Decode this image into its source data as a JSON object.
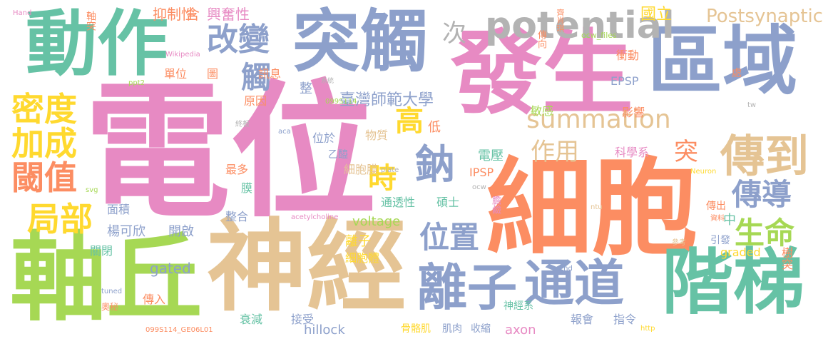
{
  "palette": {
    "green": "#66c2a5",
    "orange": "#fc8d62",
    "blue": "#8da0cb",
    "pink": "#e78ac3",
    "lime": "#a6d854",
    "yellow": "#ffd92f",
    "tan": "#e5c494",
    "gray": "#b3b3b3"
  },
  "words": [
    {
      "text": "電位",
      "color": "#e78ac3"
    },
    {
      "text": "細胞",
      "color": "#fc8d62"
    },
    {
      "text": "發生",
      "color": "#e78ac3"
    },
    {
      "text": "神經",
      "color": "#e5c494"
    },
    {
      "text": "軸丘",
      "color": "#a6d854"
    },
    {
      "text": "區域",
      "color": "#8da0cb"
    },
    {
      "text": "突觸",
      "color": "#8da0cb"
    },
    {
      "text": "動作",
      "color": "#66c2a5"
    },
    {
      "text": "階梯",
      "color": "#66c2a5"
    },
    {
      "text": "通道",
      "color": "#8da0cb"
    },
    {
      "text": "離子",
      "color": "#8da0cb"
    },
    {
      "text": "傳到",
      "color": "#e5c494"
    },
    {
      "text": "potential",
      "color": "#b3b3b3"
    },
    {
      "text": "改變",
      "color": "#8da0cb"
    },
    {
      "text": "密度",
      "color": "#ffd92f"
    },
    {
      "text": "加成",
      "color": "#ffd92f"
    },
    {
      "text": "閾值",
      "color": "#fc8d62"
    },
    {
      "text": "局部",
      "color": "#ffd92f"
    },
    {
      "text": "鈉",
      "color": "#8da0cb"
    },
    {
      "text": "時",
      "color": "#ffd92f"
    },
    {
      "text": "高",
      "color": "#ffd92f"
    },
    {
      "text": "位置",
      "color": "#8da0cb"
    },
    {
      "text": "生命",
      "color": "#a6d854"
    },
    {
      "text": "傳導",
      "color": "#8da0cb"
    },
    {
      "text": "summation",
      "color": "#e5c494"
    },
    {
      "text": "作用",
      "color": "#e5c494"
    },
    {
      "text": "Postsynaptic",
      "color": "#e5c494"
    },
    {
      "text": "突",
      "color": "#fc8d62"
    },
    {
      "text": "觸",
      "color": "#8da0cb"
    },
    {
      "text": "次",
      "color": "#b3b3b3"
    },
    {
      "text": "臺灣師範大學",
      "color": "#8da0cb"
    },
    {
      "text": "國立",
      "color": "#ffd92f"
    },
    {
      "text": "興奮性",
      "color": "#e78ac3"
    },
    {
      "text": "抑制性",
      "color": "#fc8d62"
    },
    {
      "text": "含",
      "color": "#fc8d62"
    },
    {
      "text": "軸突",
      "color": "#fc8d62"
    },
    {
      "text": "Hand",
      "color": "#e78ac3"
    },
    {
      "text": "Wikipedia",
      "color": "#e78ac3"
    },
    {
      "text": "ppt2",
      "color": "#a6d854"
    },
    {
      "text": "單位",
      "color": "#fc8d62"
    },
    {
      "text": "圖",
      "color": "#fc8d62"
    },
    {
      "text": "訊息",
      "color": "#fc8d62"
    },
    {
      "text": "系統",
      "color": "#b3b3b3"
    },
    {
      "text": "整",
      "color": "#8da0cb"
    },
    {
      "text": "原因",
      "color": "#fc8d62"
    },
    {
      "text": "099S114",
      "color": "#a6d854"
    },
    {
      "text": "EPSP",
      "color": "#8da0cb"
    },
    {
      "text": "傳向",
      "color": "#fc8d62"
    },
    {
      "text": "衝動",
      "color": "#fc8d62"
    },
    {
      "text": "處",
      "color": "#fc8d62"
    },
    {
      "text": "ocw_files",
      "color": "#a6d854"
    },
    {
      "text": "齊肖琪",
      "color": "#fc8d62"
    },
    {
      "text": "tw",
      "color": "#b3b3b3"
    },
    {
      "text": "敏感",
      "color": "#a6d854"
    },
    {
      "text": "影響",
      "color": "#fc8d62"
    },
    {
      "text": "終板",
      "color": "#b3b3b3"
    },
    {
      "text": "aca",
      "color": "#8da0cb"
    },
    {
      "text": "位於",
      "color": "#8da0cb"
    },
    {
      "text": "物質",
      "color": "#e5c494"
    },
    {
      "text": "低",
      "color": "#fc8d62"
    },
    {
      "text": "乙醯",
      "color": "#8da0cb"
    },
    {
      "text": "plate",
      "color": "#b3b3b3"
    },
    {
      "text": "細胞膜",
      "color": "#e5c494"
    },
    {
      "text": "電壓",
      "color": "#66c2a5"
    },
    {
      "text": "科學系",
      "color": "#e78ac3"
    },
    {
      "text": "最多",
      "color": "#fc8d62"
    },
    {
      "text": "膜",
      "color": "#66c2a5"
    },
    {
      "text": "IPSP",
      "color": "#fc8d62"
    },
    {
      "text": "svg",
      "color": "#a6d854"
    },
    {
      "text": "ocw",
      "color": "#b3b3b3"
    },
    {
      "text": "Neuron",
      "color": "#ffd92f"
    },
    {
      "text": "面積",
      "color": "#8da0cb"
    },
    {
      "text": "通透性",
      "color": "#66c2a5"
    },
    {
      "text": "碩士",
      "color": "#66c2a5"
    },
    {
      "text": "中",
      "color": "#66c2a5"
    },
    {
      "text": "ntu",
      "color": "#e5c494"
    },
    {
      "text": "傳出",
      "color": "#fc8d62"
    },
    {
      "text": "資料",
      "color": "#fc8d62"
    },
    {
      "text": "整合",
      "color": "#8da0cb"
    },
    {
      "text": "acetylcholine",
      "color": "#e78ac3"
    },
    {
      "text": "voltage",
      "color": "#a6d854"
    },
    {
      "text": "膽鹼",
      "color": "#e78ac3"
    },
    {
      "text": "楊可欣",
      "color": "#8da0cb"
    },
    {
      "text": "開啟",
      "color": "#8da0cb"
    },
    {
      "text": "離子",
      "color": "#ffd92f"
    },
    {
      "text": "引發",
      "color": "#8da0cb"
    },
    {
      "text": "參考",
      "color": "#e5c494"
    },
    {
      "text": "關閉",
      "color": "#66c2a5"
    },
    {
      "text": "細胞體",
      "color": "#ffd92f"
    },
    {
      "text": "graded",
      "color": "#ffd92f"
    },
    {
      "text": "end",
      "color": "#8da0cb"
    },
    {
      "text": "gated",
      "color": "#8da0cb"
    },
    {
      "text": "樹突",
      "color": "#fc8d62"
    },
    {
      "text": "tuned",
      "color": "#8da0cb"
    },
    {
      "text": "傳入",
      "color": "#fc8d62"
    },
    {
      "text": "衰減",
      "color": "#66c2a5"
    },
    {
      "text": "接受",
      "color": "#8da0cb"
    },
    {
      "text": "神經系",
      "color": "#66c2a5"
    },
    {
      "text": "報會",
      "color": "#8da0cb"
    },
    {
      "text": "指令",
      "color": "#8da0cb"
    },
    {
      "text": "奧秘",
      "color": "#fc8d62"
    },
    {
      "text": "hillock",
      "color": "#8da0cb"
    },
    {
      "text": "axon",
      "color": "#e78ac3"
    },
    {
      "text": "http",
      "color": "#ffd92f"
    },
    {
      "text": "099S114_GE06L01",
      "color": "#fc8d62"
    },
    {
      "text": "骨骼肌",
      "color": "#ffd92f"
    },
    {
      "text": "肌肉",
      "color": "#8da0cb"
    },
    {
      "text": "收縮",
      "color": "#8da0cb"
    }
  ]
}
